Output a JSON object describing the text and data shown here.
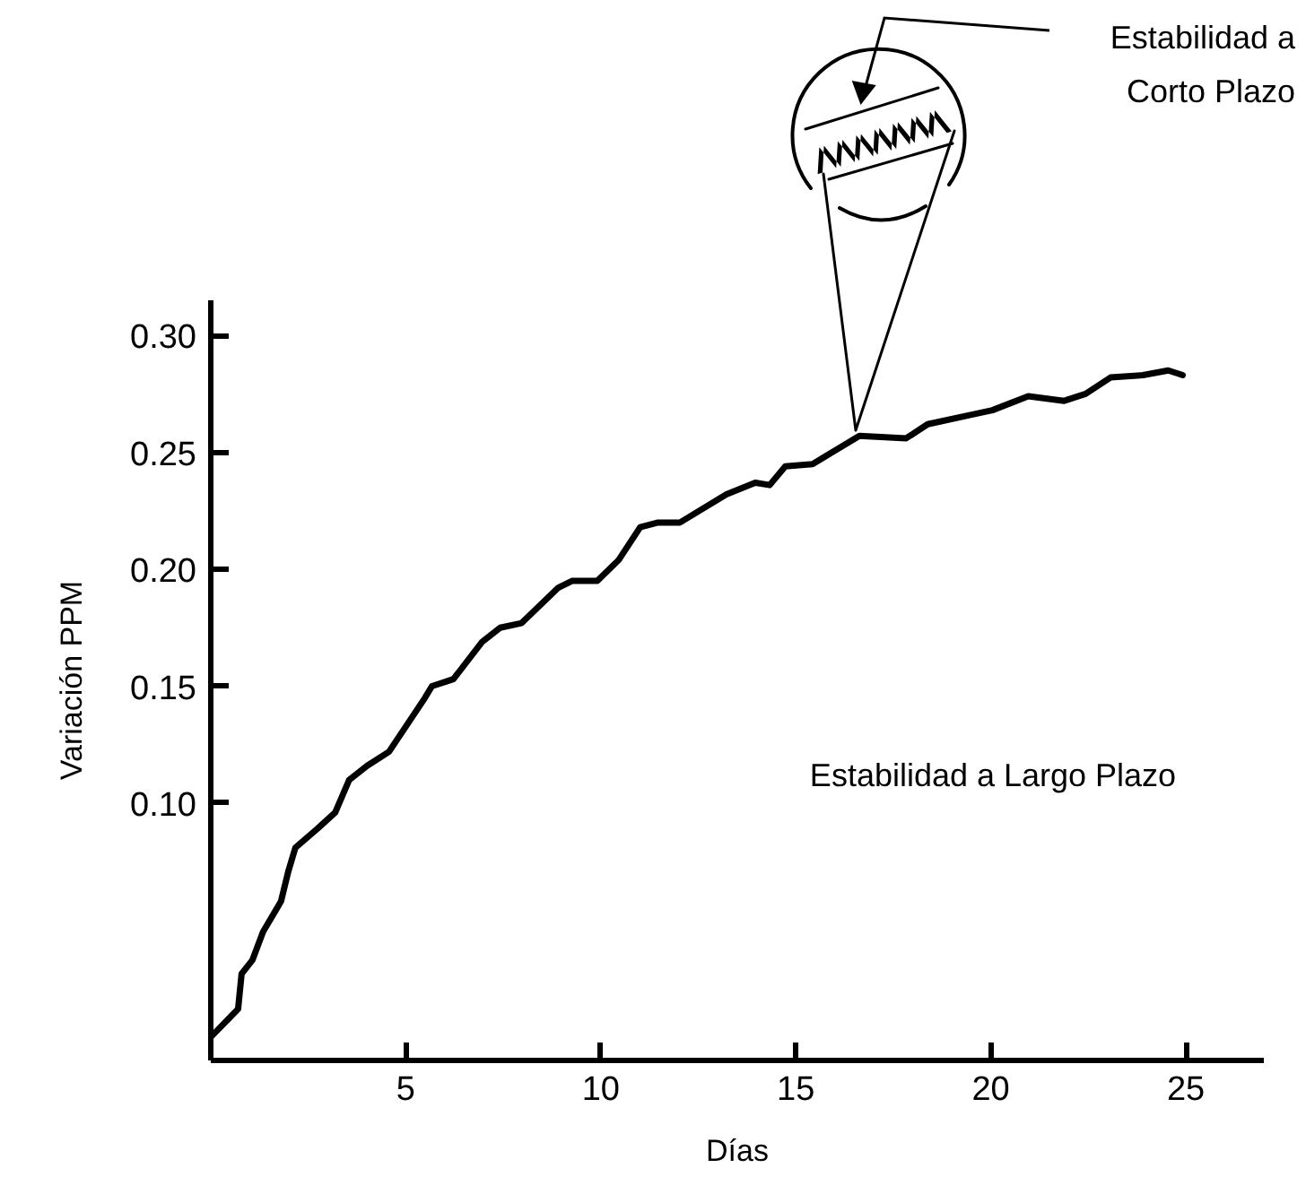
{
  "chart_data": {
    "type": "line",
    "xlabel": "Días",
    "ylabel": "Variación PPM",
    "x": [
      0,
      0.7,
      0.79,
      1.07,
      1.34,
      1.8,
      1.99,
      2.17,
      2.73,
      3.19,
      3.55,
      4.01,
      4.57,
      5.49,
      5.67,
      6.22,
      6.96,
      7.42,
      7.97,
      8.9,
      9.26,
      9.91,
      10.46,
      11.01,
      11.47,
      12.03,
      13.22,
      13.96,
      14.33,
      14.73,
      15.43,
      16.63,
      17.83,
      18.38,
      19.48,
      20.04,
      20.96,
      21.88,
      22.43,
      23.07,
      23.9,
      24.55,
      24.92
    ],
    "values": [
      0.0,
      0.012,
      0.027,
      0.033,
      0.045,
      0.058,
      0.071,
      0.081,
      0.089,
      0.096,
      0.11,
      0.116,
      0.122,
      0.145,
      0.15,
      0.153,
      0.169,
      0.175,
      0.177,
      0.192,
      0.195,
      0.195,
      0.204,
      0.218,
      0.22,
      0.22,
      0.232,
      0.237,
      0.236,
      0.244,
      0.245,
      0.257,
      0.256,
      0.262,
      0.266,
      0.268,
      0.274,
      0.272,
      0.275,
      0.282,
      0.283,
      0.285,
      0.283
    ],
    "color": "#000000",
    "line_style": "solid",
    "xlim": [
      0,
      27
    ],
    "ylim": [
      -0.01,
      0.315
    ],
    "xticks": [
      5,
      10,
      15,
      20,
      25
    ],
    "yticks": [
      {
        "value": 0.1,
        "label": "0.10"
      },
      0.15,
      {
        "value": 0.2,
        "label": "0.20"
      },
      0.25,
      {
        "value": 0.3,
        "label": "0.30"
      }
    ],
    "annotations": [
      "Estabilidad a Largo Plazo",
      "Estabilidad a Corto Plazo"
    ]
  }
}
